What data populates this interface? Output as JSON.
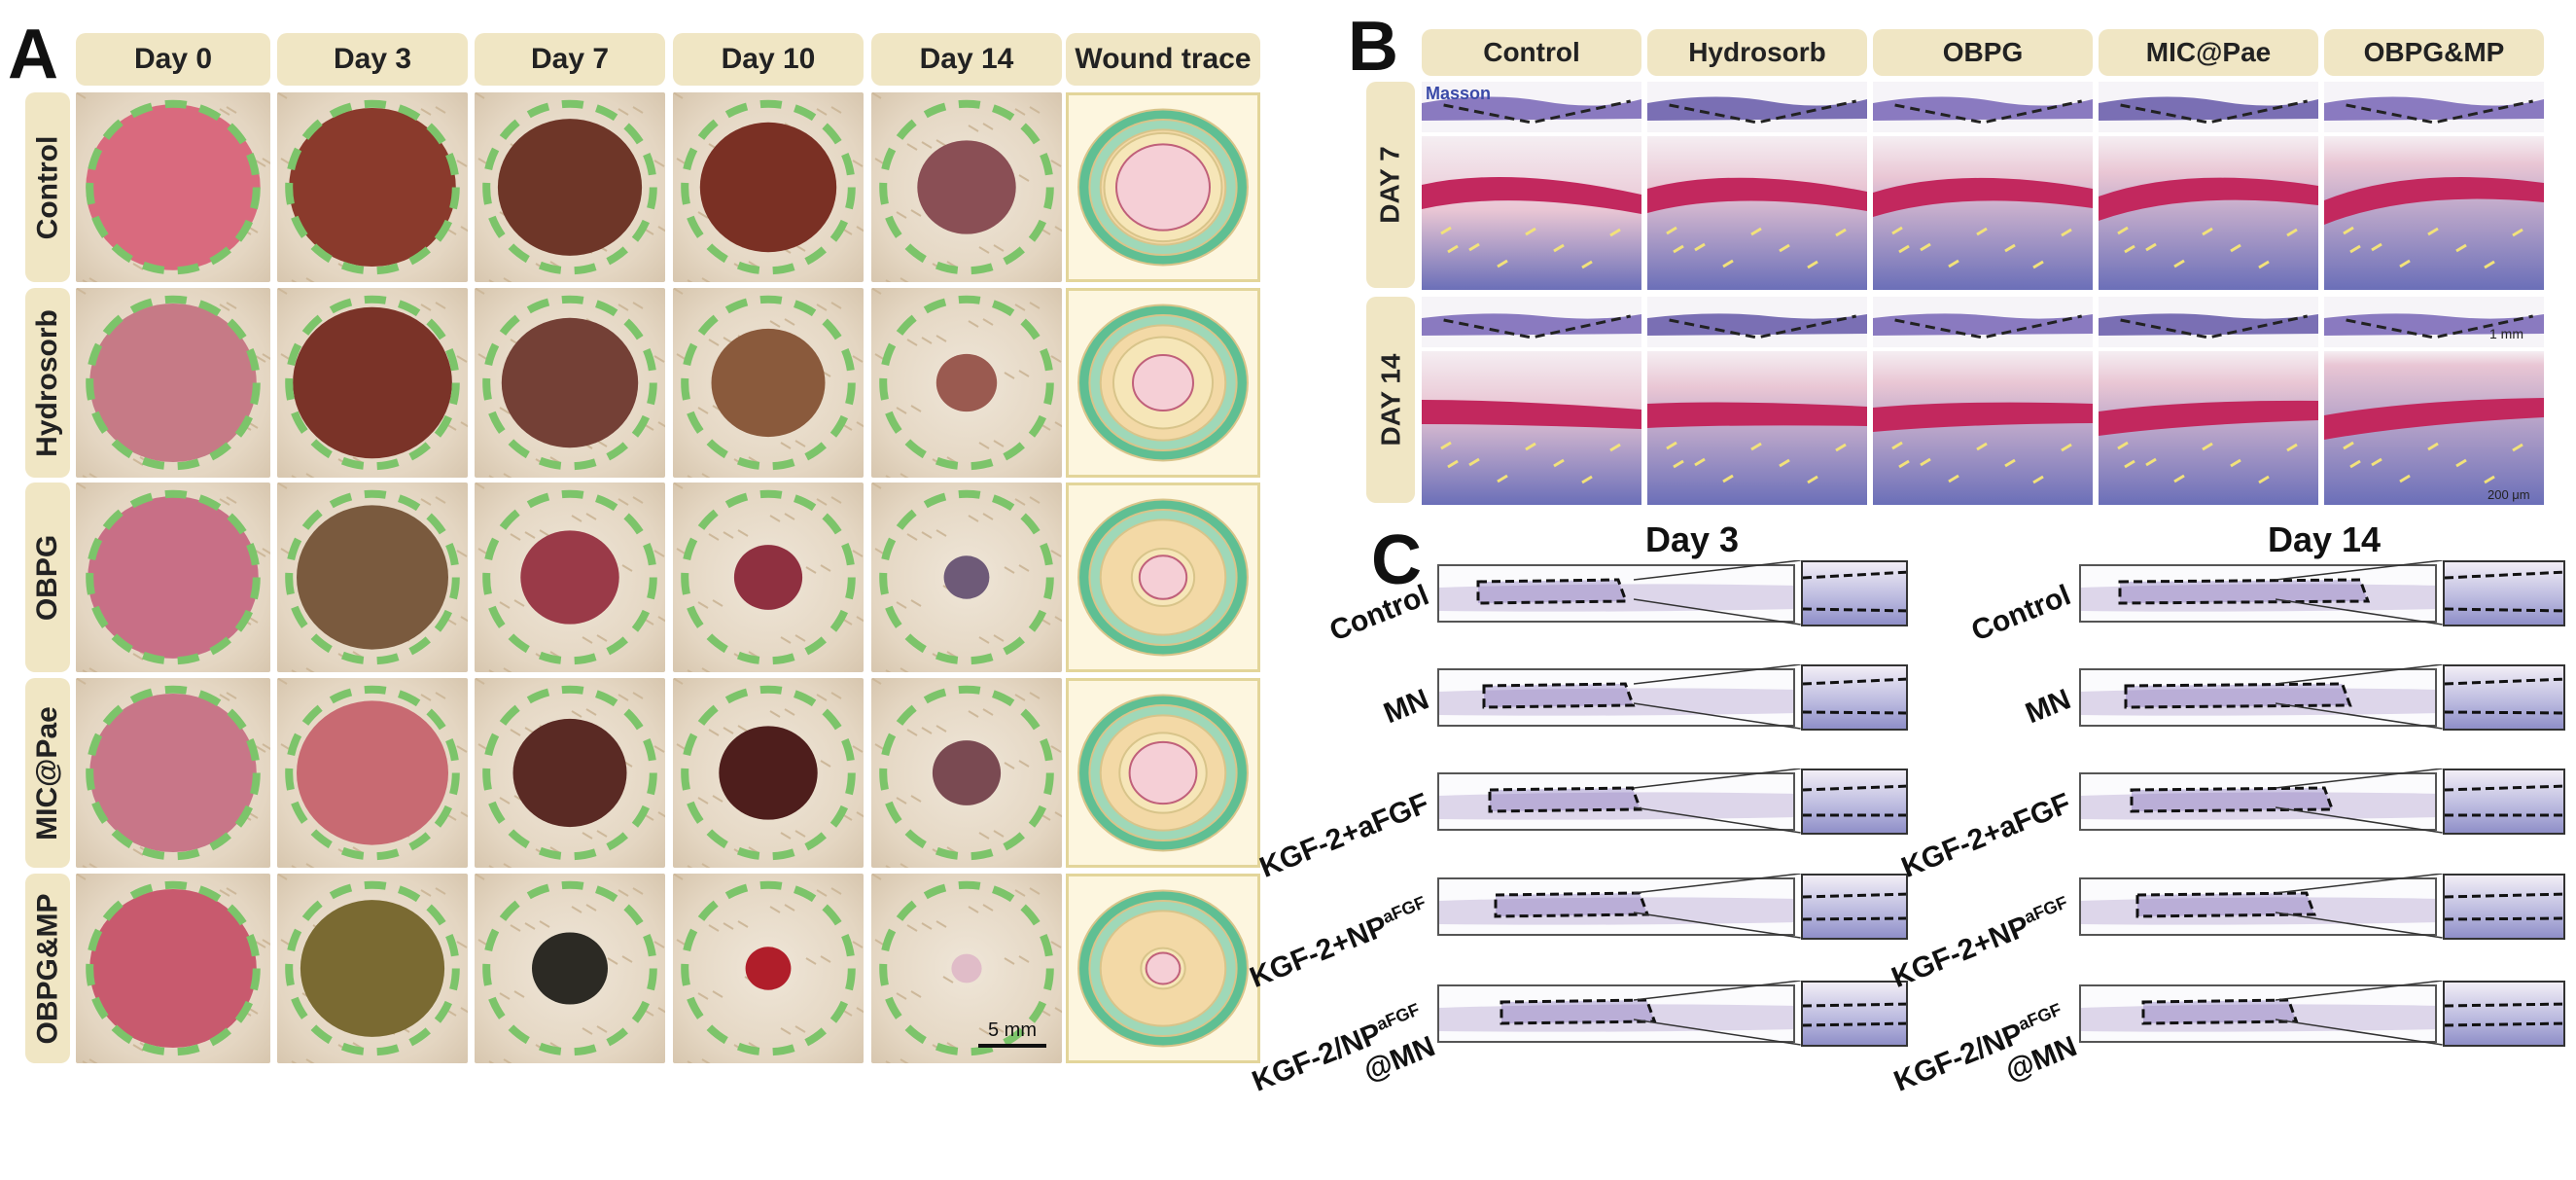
{
  "panelA": {
    "letter": "A",
    "columns": [
      "Day 0",
      "Day 3",
      "Day 7",
      "Day 10",
      "Day 14",
      "Wound trace"
    ],
    "rows": [
      "Control",
      "Hydrosorb",
      "OBPG",
      "MIC@Pae",
      "OBPG&MP"
    ],
    "scale_bar": "5 mm"
  },
  "panelB": {
    "letter": "B",
    "columns": [
      "Control",
      "Hydrosorb",
      "OBPG",
      "MIC@Pae",
      "OBPG&MP"
    ],
    "rows": [
      "DAY 7",
      "DAY 14"
    ],
    "stain_label": "Masson",
    "scale_top": "1 mm",
    "scale_bottom": "200 μm"
  },
  "panelC": {
    "letter": "C",
    "day3_title": "Day 3",
    "day14_title": "Day 14",
    "rows": [
      "Control",
      "MN",
      "KGF-2+aFGF"
    ],
    "np_label_prefix": "KGF-2+NP",
    "np_sup": "aFGF",
    "mn_label_prefix": "KGF-2/NP",
    "mn_sup": "aFGF",
    "mn_suffix": "@MN"
  },
  "colors": {
    "header_bg": "#f0e6c4",
    "dash_green": "#7cc46a",
    "trace_outer": "#6cc59b",
    "trace_mid": "#f3d9a6",
    "trace_inner": "#f5cfd6"
  }
}
